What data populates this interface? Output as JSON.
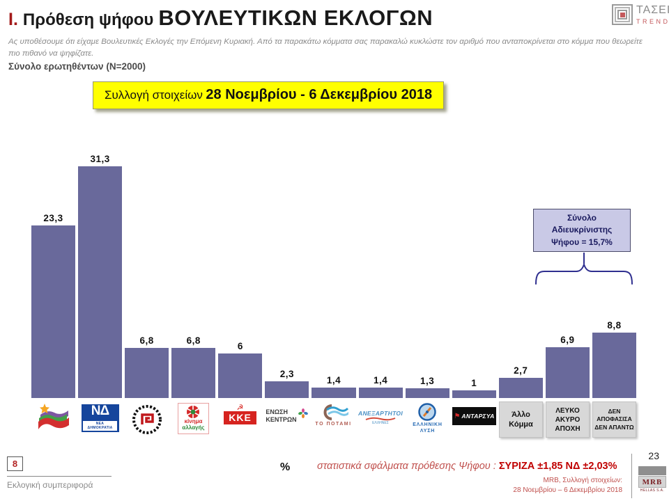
{
  "header": {
    "section_number": "I.",
    "title_prefix": "Πρόθεση ψήφου",
    "title_main": "ΒΟΥΛΕΥΤΙΚΩΝ ΕΚΛΟΓΩΝ",
    "subtitle": "Ας υποθέσουμε ότι είχαμε Βουλευτικές Εκλογές την Επόμενη Κυριακή. Από τα παρακάτω κόμματα σας παρακαλώ κυκλώστε τον αριθμό που ανταποκρίνεται στο κόμμα που θεωρείτε πιο πιθανό να ψηφίζατε.",
    "sample": "Σύνολο ερωτηθέντων (N=2000)"
  },
  "brand_top": {
    "name": "ΤΑΣΕΙΣ",
    "sub": "TRENDS"
  },
  "collection_banner": {
    "label": "Συλλογή στοιχείων",
    "dates": "28 Νοεμβρίου - 6 Δεκεμβρίου 2018"
  },
  "undecided_box": {
    "line1": "Σύνολο",
    "line2": "Αδιευκρίνιστης",
    "line3": "Ψήφου = 15,7%"
  },
  "chart_data": {
    "type": "bar",
    "title": "Πρόθεση ψήφου Βουλευτικών Εκλογών",
    "ylabel": "%",
    "ylim": [
      0,
      35
    ],
    "grid": false,
    "bar_color": "#69699B",
    "categories": [
      "ΣΥΡΙΖΑ",
      "ΝΕΑ ΔΗΜΟΚΡΑΤΙΑ",
      "ΧΡΥΣΗ ΑΥΓΗ",
      "ΚΙΝΗΜΑ ΑΛΛΑΓΗΣ",
      "ΚΚΕ",
      "ΕΝΩΣΗ ΚΕΝΤΡΩΝ",
      "ΤΟ ΠΟΤΑΜΙ",
      "ΑΝΕΞΑΡΤΗΤΟΙ ΕΛΛΗΝΕΣ",
      "ΕΛΛΗΝΙΚΗ ΛΥΣΗ",
      "ΑΝΤΑΡΣΥΑ",
      "Άλλο Κόμμα",
      "ΛΕΥΚΟ ΑΚΥΡΟ ΑΠΟΧΗ",
      "ΔΕΝ ΑΠΟΦΑΣΙΣΑ ΔΕΝ ΑΠΑΝΤΩ"
    ],
    "values": [
      23.3,
      31.3,
      6.8,
      6.8,
      6,
      2.3,
      1.4,
      1.4,
      1.3,
      1,
      2.7,
      6.9,
      8.8
    ],
    "display_values": [
      "23,3",
      "31,3",
      "6,8",
      "6,8",
      "6",
      "2,3",
      "1,4",
      "1,4",
      "1,3",
      "1",
      "2,7",
      "6,9",
      "8,8"
    ],
    "annotation": "Σύνολο Αδιευκρίνιστης Ψήφου = 15,7% (βραχίονας πάνω από τις 2 τελευταίες στήλες)"
  },
  "parties": [
    {
      "name": "ΣΥΡΙΖΑ",
      "logo": "syriza"
    },
    {
      "name": "ΝΕΑ ΔΗΜΟΚΡΑΤΙΑ",
      "logo": "nd",
      "mono": "ΝΔ",
      "sub": "ΝΕΑ ΔΗΜΟΚΡΑΤΙΑ"
    },
    {
      "name": "ΧΡΥΣΗ ΑΥΓΗ",
      "logo": "xa"
    },
    {
      "name": "ΚΙΝΗΜΑ ΑΛΛΑΓΗΣ",
      "logo": "kinal",
      "line1": "κίνημα",
      "line2": "αλλαγής"
    },
    {
      "name": "ΚΚΕ",
      "logo": "kke",
      "text": "ΚΚΕ"
    },
    {
      "name": "ΕΝΩΣΗ ΚΕΝΤΡΩΝ",
      "logo": "ek",
      "text": "ΕΝΩΣΗ\nΚΕΝΤΡΩΝ"
    },
    {
      "name": "ΤΟ ΠΟΤΑΜΙ",
      "logo": "potami",
      "text": "ΤΟ ΠΟΤΑΜΙ"
    },
    {
      "name": "ΑΝΕΞΑΡΤΗΤΟΙ ΕΛΛΗΝΕΣ",
      "logo": "anel",
      "text": "ΑΝΕΞΑΡΤΗΤΟΙ",
      "sub": "ΕΛΛΗΝΕΣ"
    },
    {
      "name": "ΕΛΛΗΝΙΚΗ ΛΥΣΗ",
      "logo": "el",
      "text": "ΕΛΛΗΝΙΚΗ\nΛΥΣΗ"
    },
    {
      "name": "ΑΝΤΑΡΣΥΑ",
      "logo": "antarsya",
      "text": "ΑΝΤΑΡΣΥΑ"
    },
    {
      "name": "Άλλο Κόμμα",
      "logo": "graybox",
      "text": "Άλλο\nΚόμμα",
      "size": "11px"
    },
    {
      "name": "ΛΕΥΚΟ ΑΚΥΡΟ ΑΠΟΧΗ",
      "logo": "graybox",
      "text": "ΛΕΥΚΟ\nΑΚΥΡΟ\nΑΠΟΧΗ",
      "size": "10px"
    },
    {
      "name": "ΔΕΝ ΑΠΟΦΑΣΙΣΑ ΔΕΝ ΑΠΑΝΤΩ",
      "logo": "graybox",
      "text": "ΔΕΝ\nΑΠΟΦΑΣΙΣΑ\nΔΕΝ ΑΠΑΝΤΩ",
      "size": "8.5px"
    }
  ],
  "footer": {
    "page_box": "8",
    "section_label": "Εκλογική συμπεριφορά",
    "percent_label": "%",
    "stat_note_italic": "στατιστικά σφάλματα πρόθεσης Ψήφου :",
    "stat_note_bold": "ΣΥΡΙΖΑ ±1,85 ΝΔ ±2,03%",
    "source_line1": "MRB, Συλλογή στοιχείων:",
    "source_line2": "28 Νοεμβρίου – 6 Δεκεμβρίου 2018",
    "page_number": "23",
    "mrb_logo": "MRB",
    "mrb_sub": "HELLAS S.A."
  },
  "colors": {
    "bar": "#69699B",
    "banner_bg": "#ffff00",
    "undecided_bg": "#c9c9e6",
    "brace": "#2f2f8f",
    "accent_red": "#a31a1a"
  }
}
